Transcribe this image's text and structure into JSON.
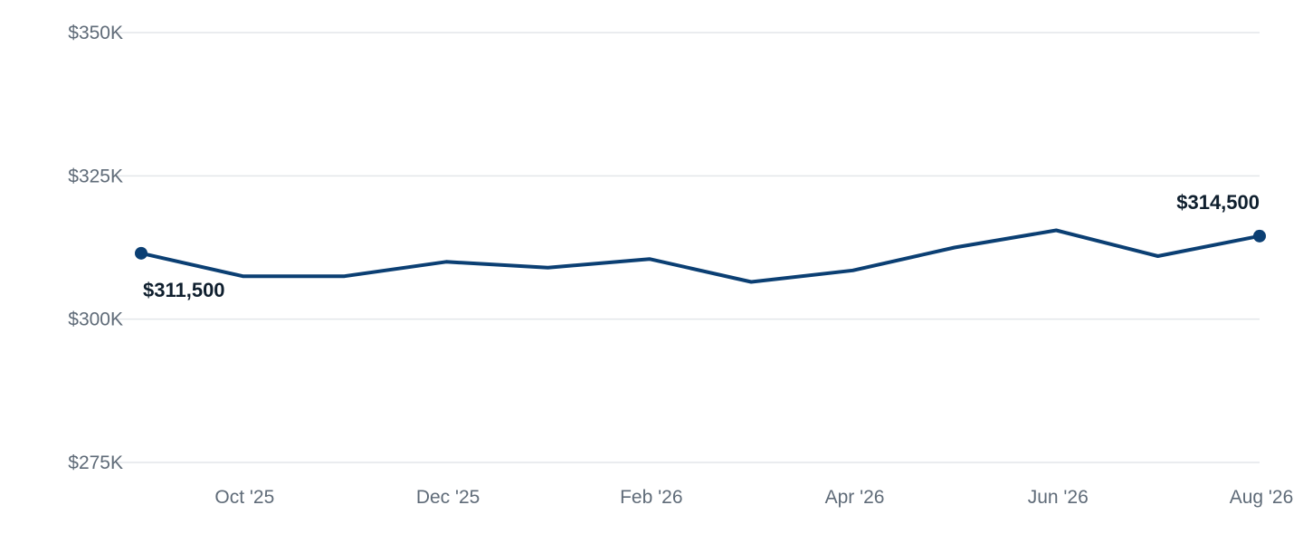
{
  "chart_data": {
    "type": "line",
    "title": "",
    "xlabel": "",
    "ylabel": "",
    "x": [
      "Sep '25",
      "Oct '25",
      "Nov '25",
      "Dec '25",
      "Jan '26",
      "Feb '26",
      "Mar '26",
      "Apr '26",
      "May '26",
      "Jun '26",
      "Jul '26",
      "Aug '26"
    ],
    "x_tick_labels": [
      "Oct '25",
      "Dec '25",
      "Feb '26",
      "Apr '26",
      "Jun '26",
      "Aug '26"
    ],
    "y_tick_labels": [
      "$350K",
      "$325K",
      "$300K",
      "$275K"
    ],
    "y_ticks": [
      350000,
      325000,
      300000,
      275000
    ],
    "ylim": [
      275000,
      350000
    ],
    "grid": "horizontal",
    "legend": "none",
    "series": [
      {
        "values": [
          311500,
          307500,
          307500,
          310000,
          309000,
          310500,
          306500,
          308500,
          312500,
          315500,
          311000,
          314500
        ],
        "color": "#0b3f73"
      }
    ],
    "annotations": [
      {
        "index": 0,
        "text": "$311,500",
        "position": "below"
      },
      {
        "index": 11,
        "text": "$314,500",
        "position": "above"
      }
    ]
  }
}
